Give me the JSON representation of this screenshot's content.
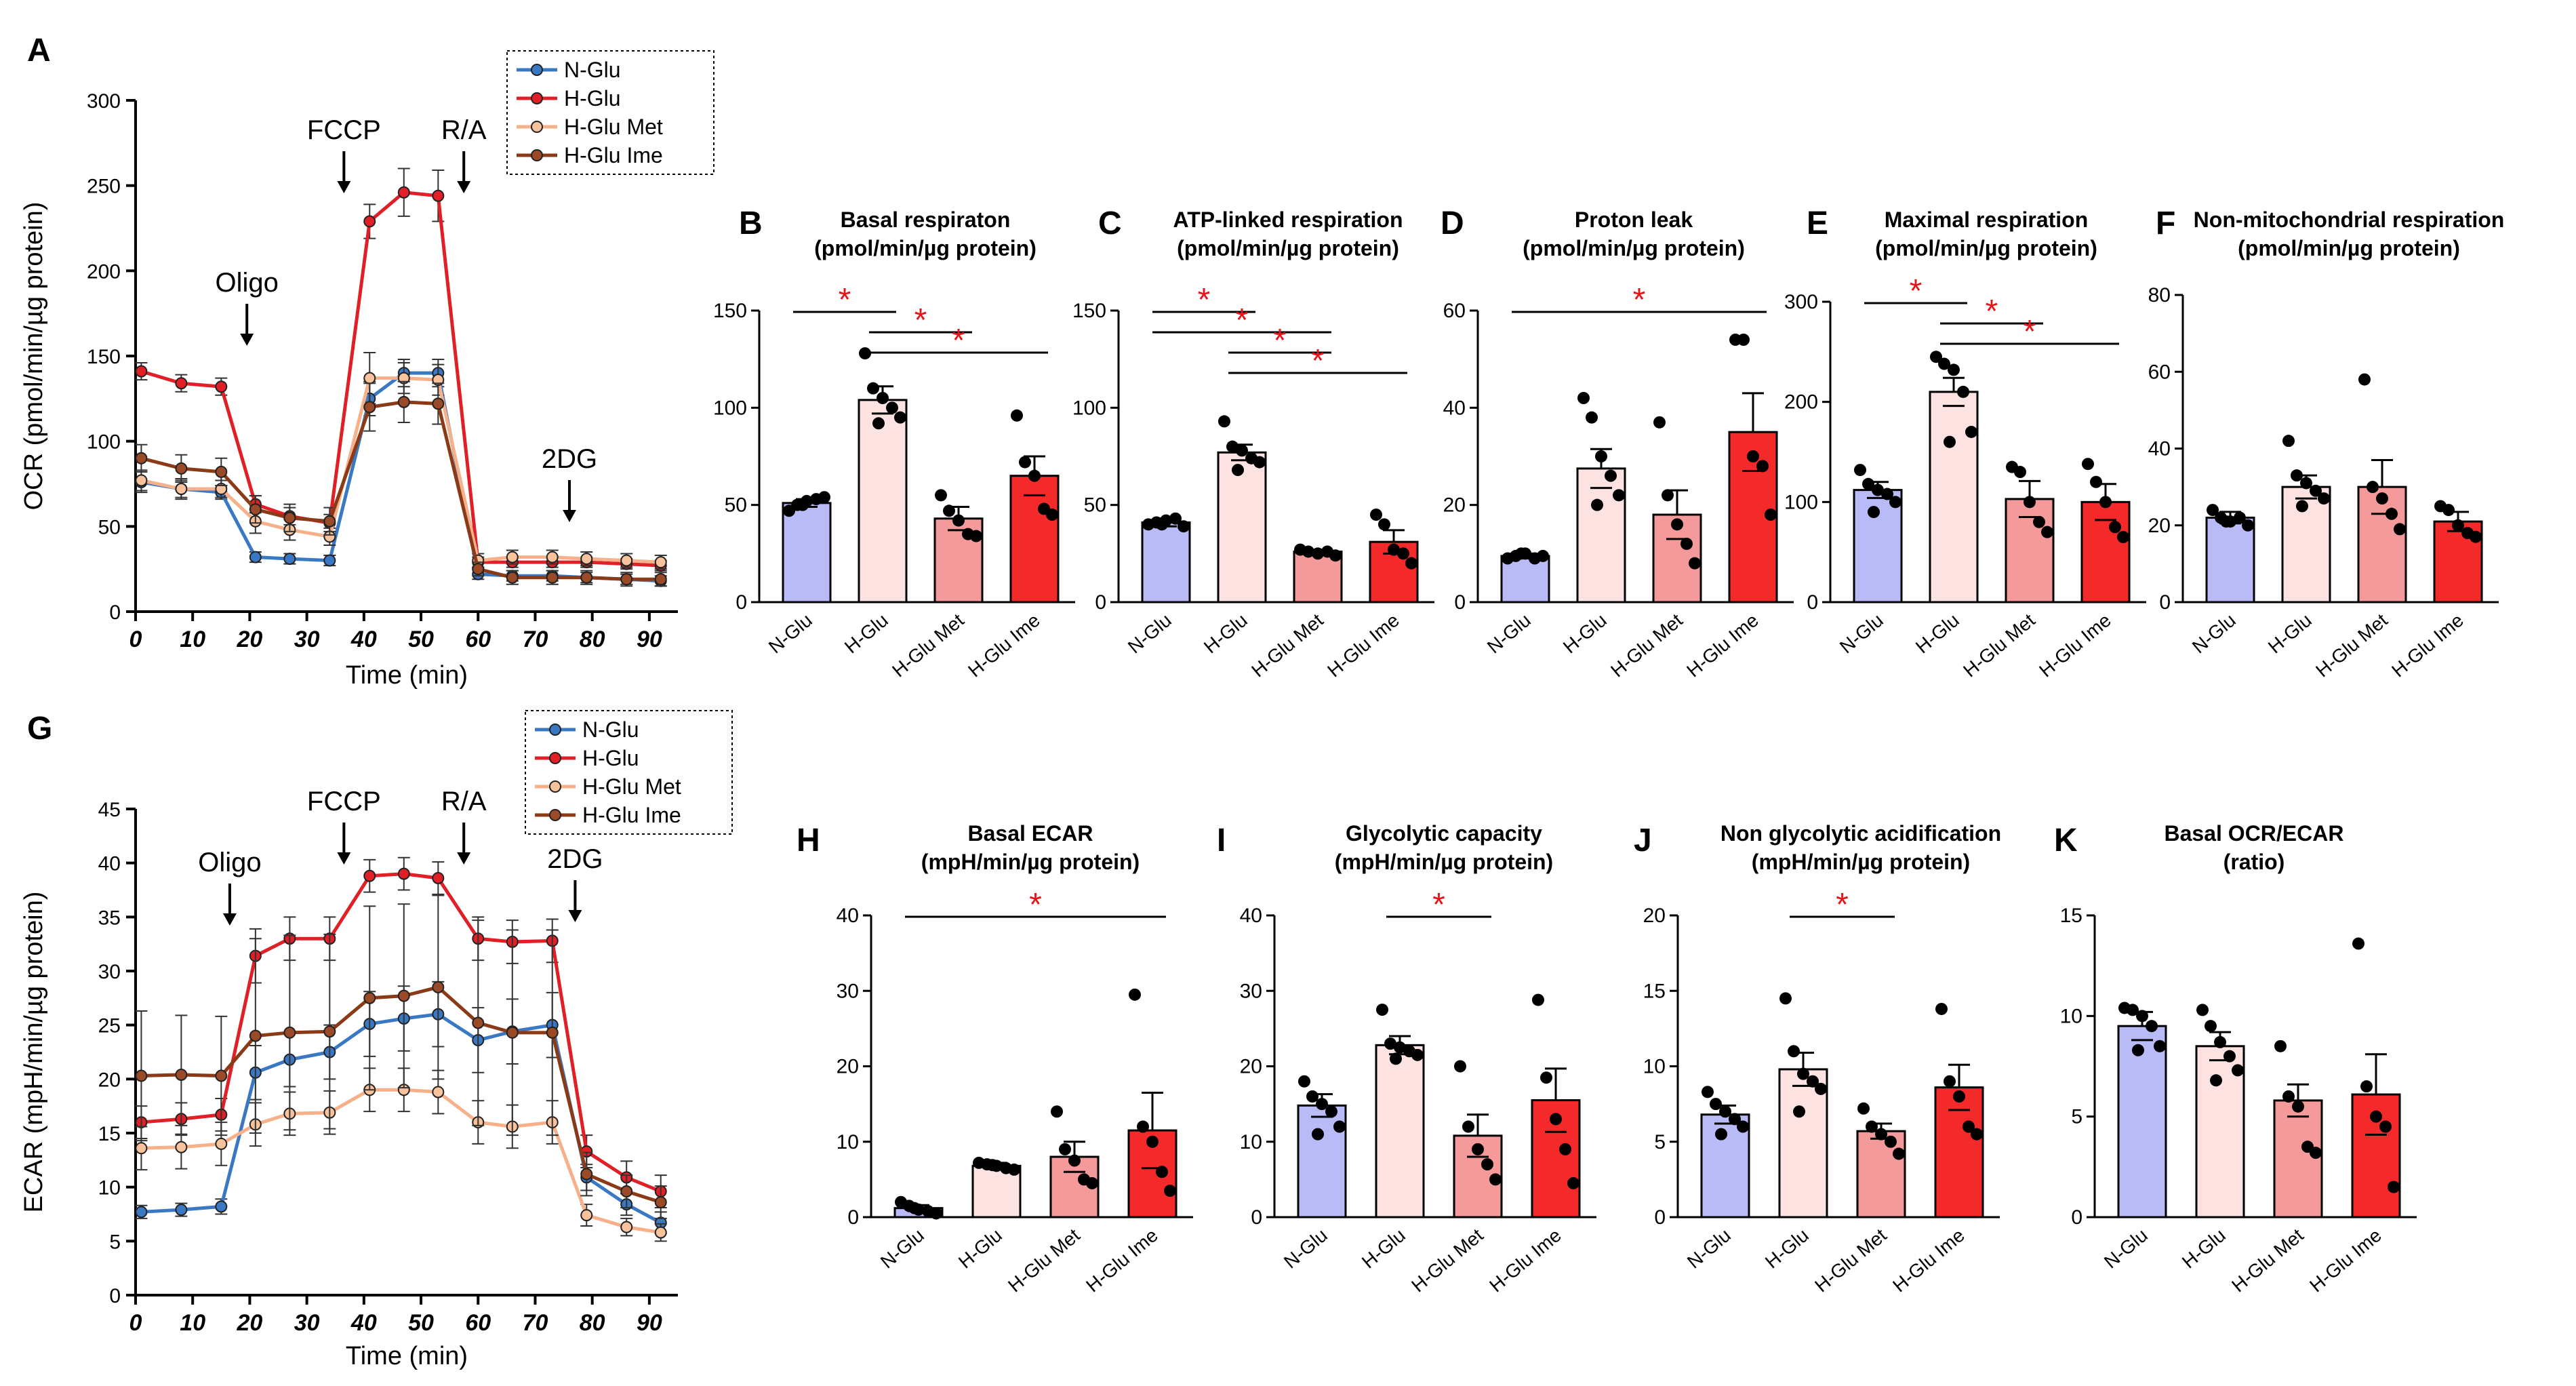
{
  "figure": {
    "colors": {
      "N-Glu": "#3a78c4",
      "H-Glu": "#e01f26",
      "H-Glu Met": "#f6b08a",
      "H-Glu Ime": "#8a3a16",
      "bar_N": "#b9bbf7",
      "bar_H": "#fde2e2",
      "bar_Met": "#f59a9a",
      "bar_Ime": "#f42a2a",
      "sig": "#e8141a"
    }
  },
  "chart_data": [
    {
      "id": "A",
      "type": "line",
      "panel_label": "A",
      "xlabel": "Time (min)",
      "ylabel": "OCR (pmol/min/µg protein)",
      "ylim": [
        0,
        300
      ],
      "yticks": [
        0,
        50,
        100,
        150,
        200,
        250,
        300
      ],
      "xlim": [
        0,
        95
      ],
      "xticks": [
        0,
        10,
        20,
        30,
        40,
        50,
        60,
        70,
        80,
        90
      ],
      "legend_position": "top-right",
      "annotations": [
        {
          "label": "Oligo",
          "x": 19.5
        },
        {
          "label": "FCCP",
          "x": 36.5
        },
        {
          "label": "R/A",
          "x": 57.5
        },
        {
          "label": "2DG",
          "x": 76
        }
      ],
      "x": [
        1,
        8,
        15,
        21,
        27,
        34,
        41,
        47,
        53,
        60,
        66,
        73,
        79,
        86,
        92
      ],
      "series": [
        {
          "name": "N-Glu",
          "values": [
            76,
            72,
            70,
            32,
            31,
            30,
            125,
            140,
            140,
            22,
            21,
            21,
            20,
            19,
            18
          ],
          "errors": [
            6,
            5,
            4,
            3,
            3,
            3,
            10,
            8,
            8,
            3,
            3,
            3,
            3,
            3,
            3
          ]
        },
        {
          "name": "H-Glu",
          "values": [
            141,
            134,
            132,
            63,
            56,
            52,
            229,
            246,
            244,
            29,
            29,
            29,
            29,
            28,
            27
          ],
          "errors": [
            5,
            5,
            5,
            5,
            5,
            5,
            10,
            14,
            15,
            3,
            3,
            3,
            3,
            3,
            3
          ]
        },
        {
          "name": "H-Glu Met",
          "values": [
            77,
            72,
            72,
            53,
            48,
            44,
            137,
            137,
            136,
            30,
            32,
            32,
            31,
            30,
            29
          ],
          "errors": [
            6,
            6,
            5,
            7,
            6,
            5,
            15,
            9,
            9,
            4,
            4,
            4,
            4,
            4,
            4
          ]
        },
        {
          "name": "H-Glu Ime",
          "values": [
            90,
            84,
            82,
            60,
            55,
            53,
            120,
            123,
            122,
            25,
            20,
            20,
            20,
            19,
            19
          ],
          "errors": [
            8,
            8,
            8,
            8,
            8,
            8,
            14,
            12,
            12,
            4,
            4,
            4,
            4,
            4,
            4
          ]
        }
      ]
    },
    {
      "id": "G",
      "type": "line",
      "panel_label": "G",
      "xlabel": "Time (min)",
      "ylabel": "ECAR (mpH/min/µg protein)",
      "ylim": [
        0,
        45
      ],
      "yticks": [
        0,
        5,
        10,
        15,
        20,
        25,
        30,
        35,
        40,
        45
      ],
      "xlim": [
        0,
        95
      ],
      "xticks": [
        0,
        10,
        20,
        30,
        40,
        50,
        60,
        70,
        80,
        90
      ],
      "legend_position": "top-right",
      "annotations": [
        {
          "label": "Oligo",
          "x": 16.5
        },
        {
          "label": "FCCP",
          "x": 36.5
        },
        {
          "label": "R/A",
          "x": 57.5
        },
        {
          "label": "2DG",
          "x": 77
        }
      ],
      "x": [
        1,
        8,
        15,
        21,
        27,
        34,
        41,
        47,
        53,
        60,
        66,
        73,
        79,
        86,
        92
      ],
      "series": [
        {
          "name": "N-Glu",
          "values": [
            7.7,
            7.9,
            8.2,
            20.6,
            21.8,
            22.5,
            25.1,
            25.6,
            26.0,
            23.6,
            24.4,
            25.0,
            10.9,
            8.4,
            6.7
          ],
          "errors": [
            0.6,
            0.6,
            0.7,
            2.5,
            2.5,
            2.5,
            3.0,
            3.0,
            3.0,
            3.0,
            3.0,
            3.0,
            1.2,
            1.0,
            1.0
          ]
        },
        {
          "name": "H-Glu",
          "values": [
            16.0,
            16.3,
            16.7,
            31.4,
            33.0,
            33.0,
            38.8,
            39.0,
            38.6,
            33.0,
            32.7,
            32.8,
            13.3,
            10.9,
            9.6
          ],
          "errors": [
            1.5,
            1.5,
            1.5,
            2.5,
            2.0,
            2.0,
            1.5,
            1.5,
            1.5,
            2.0,
            2.0,
            2.0,
            1.5,
            1.5,
            1.5
          ]
        },
        {
          "name": "H-Glu Met",
          "values": [
            13.6,
            13.7,
            14.0,
            15.8,
            16.8,
            16.9,
            19.0,
            19.0,
            18.8,
            16.0,
            15.6,
            16.0,
            7.4,
            6.3,
            5.8
          ],
          "errors": [
            2.0,
            2.0,
            2.0,
            2.0,
            2.0,
            2.0,
            2.0,
            2.0,
            2.0,
            2.0,
            2.0,
            2.0,
            1.0,
            0.8,
            0.8
          ]
        },
        {
          "name": "H-Glu Ime",
          "values": [
            20.3,
            20.4,
            20.3,
            24.0,
            24.3,
            24.4,
            27.5,
            27.7,
            28.5,
            25.2,
            24.3,
            24.3,
            11.2,
            9.6,
            8.6
          ],
          "errors": [
            6.0,
            5.5,
            5.5,
            9.0,
            9.0,
            9.0,
            8.5,
            8.5,
            8.5,
            9.5,
            9.5,
            9.5,
            2.0,
            1.5,
            1.5
          ]
        }
      ]
    },
    {
      "id": "B",
      "type": "bar",
      "panel_label": "B",
      "title": "Basal respiraton\n(pmol/min/µg protein)",
      "ylim": [
        0,
        150
      ],
      "yticks": [
        0,
        50,
        100,
        150
      ],
      "categories": [
        "N-Glu",
        "H-Glu",
        "H-Glu Met",
        "H-Glu Ime"
      ],
      "values": [
        51,
        104,
        43,
        65
      ],
      "errors": [
        2,
        7,
        6,
        10
      ],
      "points": [
        [
          47,
          50,
          52,
          53,
          54,
          50
        ],
        [
          128,
          110,
          105,
          100,
          95,
          92
        ],
        [
          55,
          47,
          42,
          35,
          34
        ],
        [
          96,
          72,
          65,
          48,
          45
        ]
      ],
      "significance": [
        {
          "pair": [
            0,
            1
          ],
          "label": "*"
        },
        {
          "pair": [
            1,
            2
          ],
          "label": "*"
        },
        {
          "pair": [
            1,
            3
          ],
          "label": "*"
        }
      ]
    },
    {
      "id": "C",
      "type": "bar",
      "panel_label": "C",
      "title": "ATP-linked respiration\n(pmol/min/µg protein)",
      "ylim": [
        0,
        150
      ],
      "yticks": [
        0,
        50,
        100,
        150
      ],
      "categories": [
        "N-Glu",
        "H-Glu",
        "H-Glu Met",
        "H-Glu Ime"
      ],
      "values": [
        41,
        77,
        26,
        31
      ],
      "errors": [
        2,
        4,
        1,
        6
      ],
      "points": [
        [
          40,
          41,
          42,
          43,
          39,
          40
        ],
        [
          93,
          80,
          78,
          74,
          72,
          68
        ],
        [
          27,
          26,
          25,
          26,
          24
        ],
        [
          45,
          40,
          27,
          25,
          20
        ]
      ],
      "significance": [
        {
          "pair": [
            0,
            1
          ],
          "label": "*"
        },
        {
          "pair": [
            0,
            2
          ],
          "label": "*"
        },
        {
          "pair": [
            1,
            2
          ],
          "label": "*"
        },
        {
          "pair": [
            1,
            3
          ],
          "label": "*"
        }
      ]
    },
    {
      "id": "D",
      "type": "bar",
      "panel_label": "D",
      "title": "Proton leak\n(pmol/min/µg protein)",
      "ylim": [
        0,
        60
      ],
      "yticks": [
        0,
        20,
        40,
        60
      ],
      "categories": [
        "N-Glu",
        "H-Glu",
        "H-Glu Met",
        "H-Glu Ime"
      ],
      "values": [
        9.5,
        27.5,
        18,
        35
      ],
      "errors": [
        0.5,
        4,
        5,
        8
      ],
      "points": [
        [
          9,
          9.5,
          10,
          9,
          9.5,
          10
        ],
        [
          42,
          38,
          30,
          26,
          22,
          20
        ],
        [
          37,
          22,
          16,
          12,
          8
        ],
        [
          54,
          54,
          30,
          28,
          18
        ]
      ],
      "significance": [
        {
          "pair": [
            0,
            3
          ],
          "label": "*"
        }
      ]
    },
    {
      "id": "E",
      "type": "bar",
      "panel_label": "E",
      "title": "Maximal respiration\n(pmol/min/µg protein)",
      "ylim": [
        0,
        300
      ],
      "yticks": [
        0,
        100,
        200,
        300
      ],
      "categories": [
        "N-Glu",
        "H-Glu",
        "H-Glu Met",
        "H-Glu Ime"
      ],
      "values": [
        112,
        210,
        103,
        100
      ],
      "errors": [
        8,
        14,
        18,
        18
      ],
      "points": [
        [
          132,
          118,
          112,
          108,
          100,
          90
        ],
        [
          245,
          238,
          232,
          210,
          170,
          160
        ],
        [
          135,
          130,
          100,
          80,
          70
        ],
        [
          138,
          120,
          100,
          75,
          65
        ]
      ],
      "significance": [
        {
          "pair": [
            0,
            1
          ],
          "label": "*"
        },
        {
          "pair": [
            1,
            2
          ],
          "label": "*"
        },
        {
          "pair": [
            1,
            3
          ],
          "label": "*"
        }
      ]
    },
    {
      "id": "F",
      "type": "bar",
      "panel_label": "F",
      "title": "Non-mitochondrial respiration\n(pmol/min/µg protein)",
      "ylim": [
        0,
        80
      ],
      "yticks": [
        0,
        20,
        40,
        60,
        80
      ],
      "categories": [
        "N-Glu",
        "H-Glu",
        "H-Glu Met",
        "H-Glu Ime"
      ],
      "values": [
        22,
        30,
        30,
        21
      ],
      "errors": [
        1.5,
        3,
        7,
        2.5
      ],
      "points": [
        [
          24,
          22,
          21,
          22,
          20,
          21
        ],
        [
          42,
          33,
          31,
          29,
          27,
          25
        ],
        [
          58,
          30,
          27,
          23,
          19
        ],
        [
          25,
          24,
          20,
          18,
          17
        ]
      ],
      "significance": []
    },
    {
      "id": "H",
      "type": "bar",
      "panel_label": "H",
      "title": "Basal ECAR\n(mpH/min/µg protein)",
      "ylim": [
        0,
        40
      ],
      "yticks": [
        0,
        10,
        20,
        30,
        40
      ],
      "categories": [
        "N-Glu",
        "H-Glu",
        "H-Glu Met",
        "H-Glu Ime"
      ],
      "values": [
        1.2,
        6.8,
        8,
        11.5
      ],
      "errors": [
        0.4,
        0.4,
        2,
        5
      ],
      "points": [
        [
          2,
          1.5,
          1,
          0.8,
          0.5,
          1.2
        ],
        [
          7.2,
          7,
          6.8,
          6.5,
          6.3,
          6.9
        ],
        [
          14,
          9,
          7.5,
          5,
          4.5
        ],
        [
          29.5,
          12,
          10,
          6,
          3.5
        ]
      ],
      "significance": [
        {
          "pair": [
            0,
            3
          ],
          "label": "*"
        }
      ]
    },
    {
      "id": "I",
      "type": "bar",
      "panel_label": "I",
      "title": "Glycolytic capacity\n(mpH/min/µg protein)",
      "ylim": [
        0,
        40
      ],
      "yticks": [
        0,
        10,
        20,
        30,
        40
      ],
      "categories": [
        "N-Glu",
        "H-Glu",
        "H-Glu Met",
        "H-Glu Ime"
      ],
      "values": [
        14.8,
        22.8,
        10.8,
        15.5
      ],
      "errors": [
        1.5,
        1.2,
        2.8,
        4.2
      ],
      "points": [
        [
          18,
          16,
          15,
          14,
          12,
          11
        ],
        [
          27.5,
          23,
          22.5,
          22,
          21.5,
          21
        ],
        [
          20,
          12,
          9,
          7,
          5
        ],
        [
          28.8,
          18.5,
          13,
          9,
          4.5
        ]
      ],
      "significance": [
        {
          "pair": [
            1,
            2
          ],
          "label": "*"
        }
      ]
    },
    {
      "id": "J",
      "type": "bar",
      "panel_label": "J",
      "title": "Non glycolytic acidification\n(mpH/min/µg protein)",
      "ylim": [
        0,
        20
      ],
      "yticks": [
        0,
        5,
        10,
        15,
        20
      ],
      "categories": [
        "N-Glu",
        "H-Glu",
        "H-Glu Met",
        "H-Glu Ime"
      ],
      "values": [
        6.8,
        9.8,
        5.7,
        8.6
      ],
      "errors": [
        0.6,
        1.1,
        0.5,
        1.5
      ],
      "points": [
        [
          8.3,
          7.5,
          7,
          6.5,
          6,
          5.5
        ],
        [
          14.5,
          11,
          9.5,
          9,
          8.5,
          7
        ],
        [
          7.2,
          6,
          5.5,
          5,
          4.2
        ],
        [
          13.8,
          9,
          8,
          6,
          5.5
        ]
      ],
      "significance": [
        {
          "pair": [
            1,
            2
          ],
          "label": "*"
        }
      ]
    },
    {
      "id": "K",
      "type": "bar",
      "panel_label": "K",
      "title": "Basal OCR/ECAR\n(ratio)",
      "ylim": [
        0,
        15
      ],
      "yticks": [
        0,
        5,
        10,
        15
      ],
      "categories": [
        "N-Glu",
        "H-Glu",
        "H-Glu Met",
        "H-Glu Ime"
      ],
      "values": [
        9.5,
        8.5,
        5.8,
        6.1
      ],
      "errors": [
        0.7,
        0.7,
        0.8,
        2
      ],
      "points": [
        [
          10.4,
          10.3,
          10,
          9.5,
          8.5,
          8.3
        ],
        [
          10.3,
          9.5,
          8.7,
          8,
          7.3,
          6.8
        ],
        [
          8.5,
          6,
          5.5,
          3.5,
          3.2
        ],
        [
          13.6,
          6.5,
          5,
          4.5,
          1.5
        ]
      ],
      "significance": []
    }
  ]
}
